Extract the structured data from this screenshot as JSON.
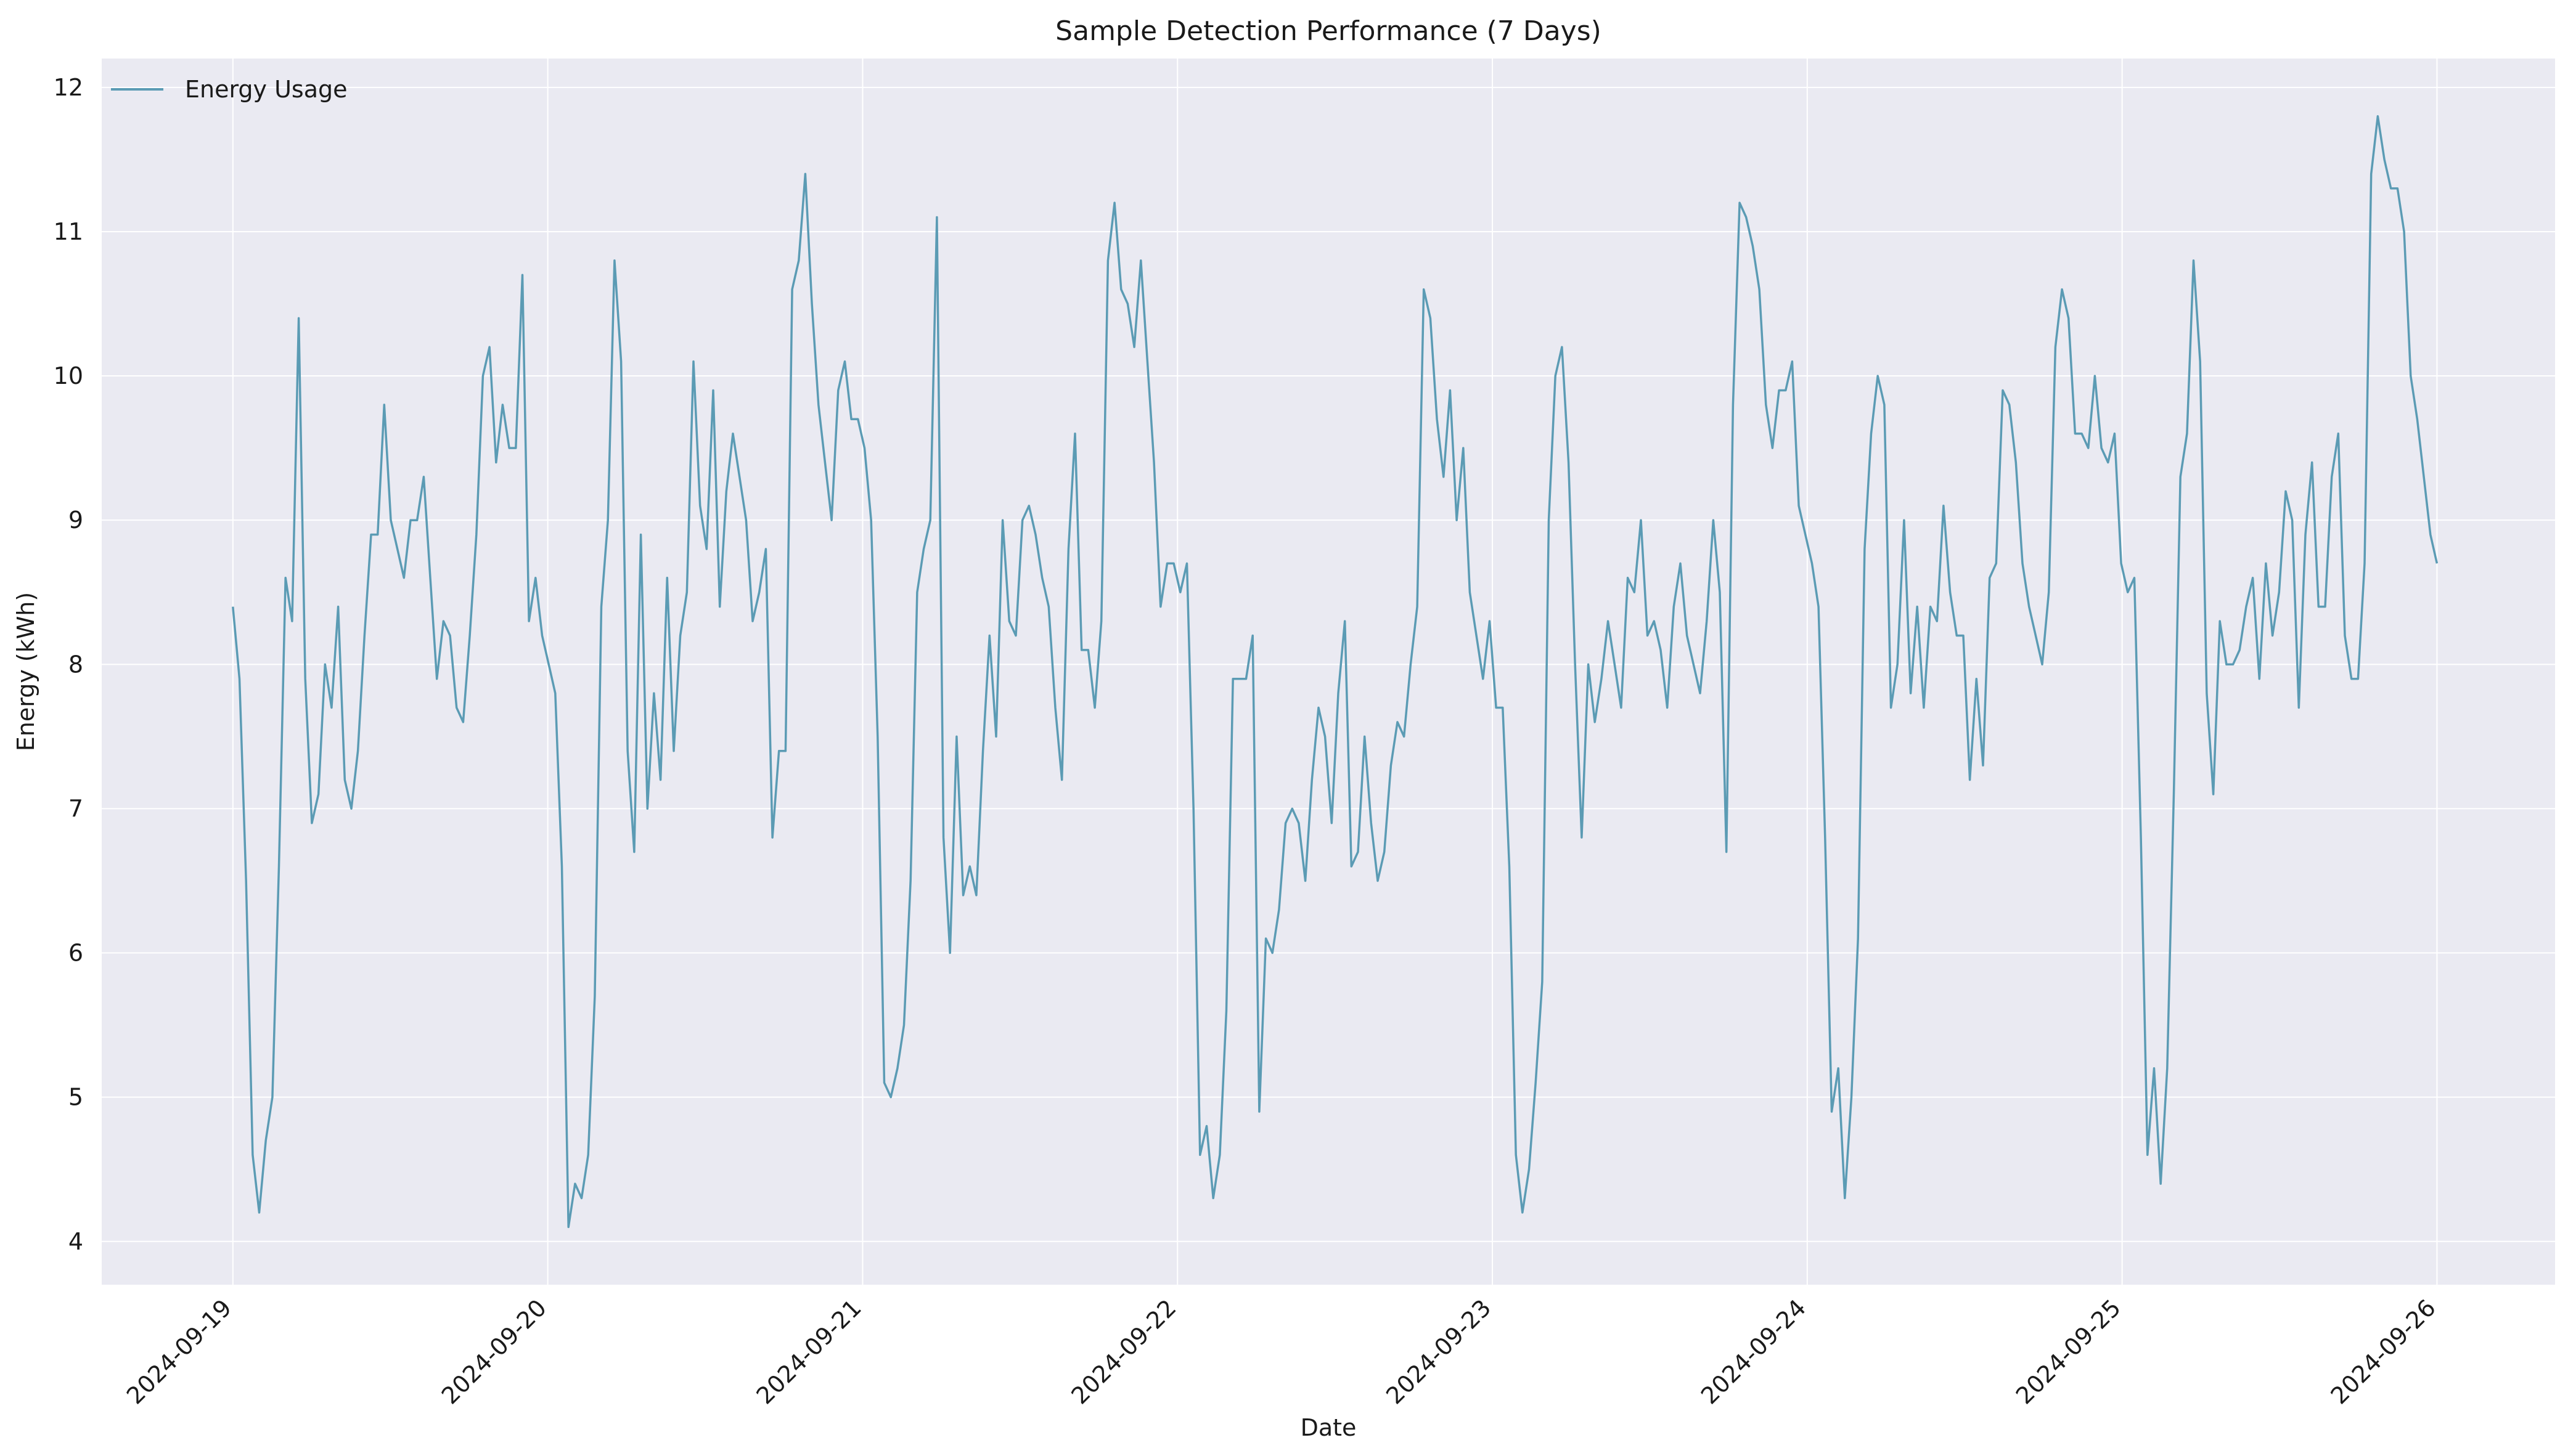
{
  "chart_data": {
    "type": "line",
    "title": "Sample Detection Performance (7 Days)",
    "xlabel": "Date",
    "ylabel": "Energy (kWh)",
    "x_start": "2024-09-19 00:00",
    "x_end": "2024-09-26 00:00",
    "x_ticks": [
      "2024-09-19",
      "2024-09-20",
      "2024-09-21",
      "2024-09-22",
      "2024-09-23",
      "2024-09-24",
      "2024-09-25",
      "2024-09-26"
    ],
    "y_ticks": [
      4,
      5,
      6,
      7,
      8,
      9,
      10,
      11,
      12
    ],
    "xlim": [
      "2024-09-18 14:00",
      "2024-09-26 09:00"
    ],
    "ylim": [
      3.7,
      12.2
    ],
    "grid": true,
    "legend_position": "top-left",
    "series": [
      {
        "name": "Energy Usage",
        "color": "#5b9bb4",
        "values": [
          8.4,
          7.9,
          6.5,
          4.6,
          4.2,
          4.7,
          5.0,
          6.6,
          8.6,
          8.3,
          10.4,
          7.9,
          6.9,
          7.1,
          8.0,
          7.7,
          8.4,
          7.2,
          7.0,
          7.4,
          8.2,
          8.9,
          8.9,
          9.8,
          9.0,
          8.8,
          8.6,
          9.0,
          9.0,
          9.3,
          8.6,
          7.9,
          8.3,
          8.2,
          7.7,
          7.6,
          8.2,
          8.9,
          10.0,
          10.2,
          9.4,
          9.8,
          9.5,
          9.5,
          10.7,
          8.3,
          8.6,
          8.2,
          8.0,
          7.8,
          6.6,
          4.1,
          4.4,
          4.3,
          4.6,
          5.7,
          8.4,
          9.0,
          10.8,
          10.1,
          7.4,
          6.7,
          8.9,
          7.0,
          7.8,
          7.2,
          8.6,
          7.4,
          8.2,
          8.5,
          10.1,
          9.1,
          8.8,
          9.9,
          8.4,
          9.2,
          9.6,
          9.3,
          9.0,
          8.3,
          8.5,
          8.8,
          6.8,
          7.4,
          7.4,
          10.6,
          10.8,
          11.4,
          10.5,
          9.8,
          9.4,
          9.0,
          9.9,
          10.1,
          9.7,
          9.7,
          9.5,
          9.0,
          7.5,
          5.1,
          5.0,
          5.2,
          5.5,
          6.5,
          8.5,
          8.8,
          9.0,
          11.1,
          6.8,
          6.0,
          7.5,
          6.4,
          6.6,
          6.4,
          7.4,
          8.2,
          7.5,
          9.0,
          8.3,
          8.2,
          9.0,
          9.1,
          8.9,
          8.6,
          8.4,
          7.7,
          7.2,
          8.8,
          9.6,
          8.1,
          8.1,
          7.7,
          8.3,
          10.8,
          11.2,
          10.6,
          10.5,
          10.2,
          10.8,
          10.1,
          9.4,
          8.4,
          8.7,
          8.7,
          8.5,
          8.7,
          7.0,
          4.6,
          4.8,
          4.3,
          4.6,
          5.6,
          7.9,
          7.9,
          7.9,
          8.2,
          4.9,
          6.1,
          6.0,
          6.3,
          6.9,
          7.0,
          6.9,
          6.5,
          7.2,
          7.7,
          7.5,
          6.9,
          7.8,
          8.3,
          6.6,
          6.7,
          7.5,
          6.9,
          6.5,
          6.7,
          7.3,
          7.6,
          7.5,
          8.0,
          8.4,
          10.6,
          10.4,
          9.7,
          9.3,
          9.9,
          9.0,
          9.5,
          8.5,
          8.2,
          7.9,
          8.3,
          7.7,
          7.7,
          6.6,
          4.6,
          4.2,
          4.5,
          5.1,
          5.8,
          9.0,
          10.0,
          10.2,
          9.4,
          8.0,
          6.8,
          8.0,
          7.6,
          7.9,
          8.3,
          8.0,
          7.7,
          8.6,
          8.5,
          9.0,
          8.2,
          8.3,
          8.1,
          7.7,
          8.4,
          8.7,
          8.2,
          8.0,
          7.8,
          8.3,
          9.0,
          8.5,
          6.7,
          9.8,
          11.2,
          11.1,
          10.9,
          10.6,
          9.8,
          9.5,
          9.9,
          9.9,
          10.1,
          9.1,
          8.9,
          8.7,
          8.4,
          6.8,
          4.9,
          5.2,
          4.3,
          5.0,
          6.1,
          8.8,
          9.6,
          10.0,
          9.8,
          7.7,
          8.0,
          9.0,
          7.8,
          8.4,
          7.7,
          8.4,
          8.3,
          9.1,
          8.5,
          8.2,
          8.2,
          7.2,
          7.9,
          7.3,
          8.6,
          8.7,
          9.9,
          9.8,
          9.4,
          8.7,
          8.4,
          8.2,
          8.0,
          8.5,
          10.2,
          10.6,
          10.4,
          9.6,
          9.6,
          9.5,
          10.0,
          9.5,
          9.4,
          9.6,
          8.7,
          8.5,
          8.6,
          6.8,
          4.6,
          5.2,
          4.4,
          5.2,
          7.1,
          9.3,
          9.6,
          10.8,
          10.1,
          7.8,
          7.1,
          8.3,
          8.0,
          8.0,
          8.1,
          8.4,
          8.6,
          7.9,
          8.7,
          8.2,
          8.5,
          9.2,
          9.0,
          7.7,
          8.9,
          9.4,
          8.4,
          8.4,
          9.3,
          9.6,
          8.2,
          7.9,
          7.9,
          8.7,
          11.4,
          11.8,
          11.5,
          11.3,
          11.3,
          11.0,
          10.0,
          9.7,
          9.3,
          8.9,
          8.7
        ]
      }
    ]
  }
}
